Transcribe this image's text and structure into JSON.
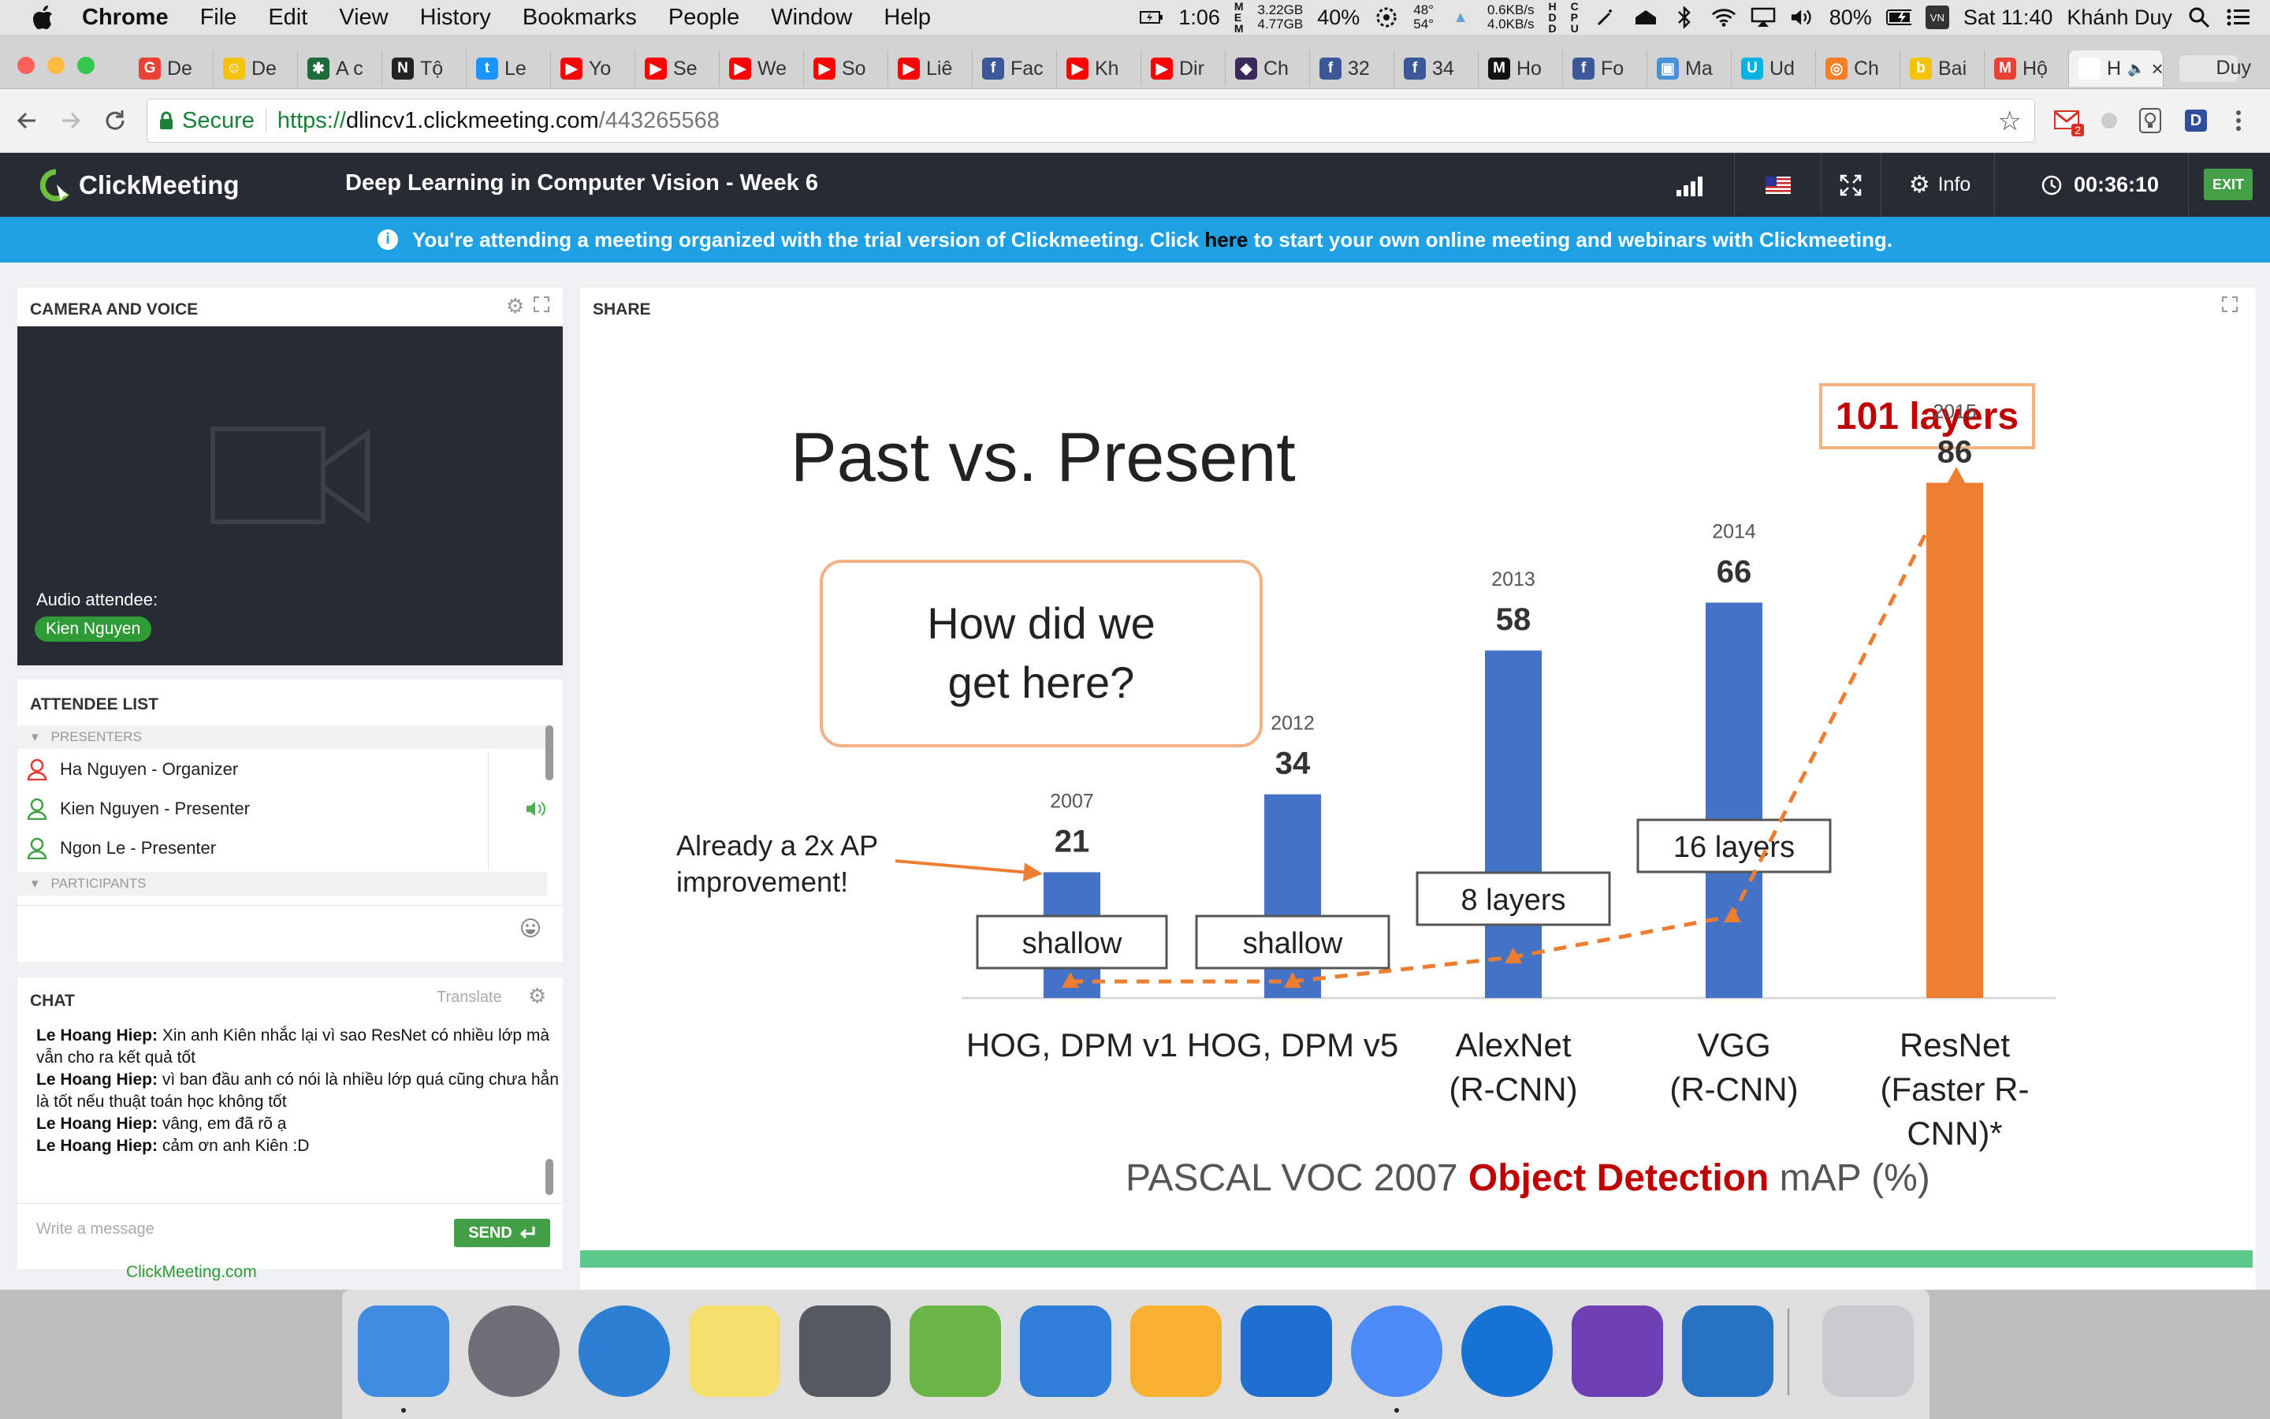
{
  "menubar": {
    "app": "Chrome",
    "menus": [
      "File",
      "Edit",
      "View",
      "History",
      "Bookmarks",
      "People",
      "Window",
      "Help"
    ],
    "battery_time": "1:06",
    "memory": [
      "3.22GB",
      "4.77GB"
    ],
    "cpu": "40%",
    "temps": [
      "48°",
      "54°"
    ],
    "network": [
      "0.6KB/s",
      "4.0KB/s"
    ],
    "battery": "80%",
    "clock": "Sat 11:40",
    "user": "Khánh Duy"
  },
  "browser": {
    "tabs": [
      {
        "label": "De",
        "color": "#ea4335",
        "glyph": "G"
      },
      {
        "label": "De",
        "color": "#f4c20d",
        "glyph": "☺"
      },
      {
        "label": "A c",
        "color": "#1e6b3a",
        "glyph": "✱"
      },
      {
        "label": "Tộ",
        "color": "#222222",
        "glyph": "N"
      },
      {
        "label": "Le",
        "color": "#1a94ff",
        "glyph": "t"
      },
      {
        "label": "Yo",
        "color": "#ff0000",
        "glyph": "▶"
      },
      {
        "label": "Se",
        "color": "#ff0000",
        "glyph": "▶"
      },
      {
        "label": "We",
        "color": "#ff0000",
        "glyph": "▶"
      },
      {
        "label": "So",
        "color": "#ff0000",
        "glyph": "▶"
      },
      {
        "label": "Liê",
        "color": "#ff0000",
        "glyph": "▶"
      },
      {
        "label": "Fac",
        "color": "#3b5998",
        "glyph": "f"
      },
      {
        "label": "Kh",
        "color": "#ff0000",
        "glyph": "▶"
      },
      {
        "label": "Dir",
        "color": "#ff0000",
        "glyph": "▶"
      },
      {
        "label": "Ch",
        "color": "#3a2a5a",
        "glyph": "◆"
      },
      {
        "label": "32",
        "color": "#3b5998",
        "glyph": "f"
      },
      {
        "label": "34",
        "color": "#3b5998",
        "glyph": "f"
      },
      {
        "label": "Ho",
        "color": "#111111",
        "glyph": "M"
      },
      {
        "label": "Fo",
        "color": "#3b5998",
        "glyph": "f"
      },
      {
        "label": "Ma",
        "color": "#4a90d9",
        "glyph": "▣"
      },
      {
        "label": "Ud",
        "color": "#02b3e4",
        "glyph": "U"
      },
      {
        "label": "Ch",
        "color": "#f48024",
        "glyph": "◎"
      },
      {
        "label": "Bai",
        "color": "#f5c400",
        "glyph": "b"
      },
      {
        "label": "Hộ",
        "color": "#ea4335",
        "glyph": "M"
      },
      {
        "label": "H",
        "color": "#ffffff",
        "glyph": ""
      }
    ],
    "profile": "Duy",
    "secure_label": "Secure",
    "url_scheme": "https://",
    "url_host": "dlincv1.clickmeeting.com",
    "url_path": "/443265568",
    "gmail_badge": "2"
  },
  "app": {
    "logo": "ClickMeeting",
    "title": "Deep Learning in Computer Vision - Week 6",
    "info_label": "Info",
    "timer": "00:36:10",
    "exit_label": "EXIT",
    "notice_pre": "You're attending a meeting organized with the trial version of Clickmeeting. Click ",
    "notice_link": "here",
    "notice_post": " to start your own online meeting and webinars with Clickmeeting."
  },
  "camera": {
    "title": "CAMERA AND VOICE",
    "audio_label": "Audio attendee:",
    "audio_name": "Kien Nguyen"
  },
  "attendees": {
    "title": "ATTENDEE LIST",
    "presenters_label": "PRESENTERS",
    "participants_label": "PARTICIPANTS",
    "presenters": [
      {
        "name": "Ha Nguyen  - Organizer",
        "color": "#e53935"
      },
      {
        "name": "Kien Nguyen  - Presenter",
        "color": "#43a047"
      },
      {
        "name": "Ngon Le  - Presenter",
        "color": "#43a047"
      }
    ]
  },
  "chat": {
    "title": "CHAT",
    "translate": "Translate",
    "messages": [
      {
        "author": "Le Hoang Hiep:",
        "text": " Xin anh Kiên nhắc lại vì sao ResNet có nhiều lớp mà vẫn cho ra kết quả tốt"
      },
      {
        "author": "Le Hoang Hiep:",
        "text": " vì ban đầu anh có nói là nhiều lớp quá cũng chưa hẳn là tốt nếu thuật toán học không tốt"
      },
      {
        "author": "Le Hoang Hiep:",
        "text": " vâng, em đã rõ ạ"
      },
      {
        "author": "Le Hoang Hiep:",
        "text": " cảm ơn anh Kiên :D"
      }
    ],
    "placeholder": "Write a message",
    "send": "SEND",
    "powered": "ClickMeeting.com"
  },
  "share": {
    "title": "SHARE",
    "slide": {
      "heading": "Past vs. Present",
      "question": [
        "How did we",
        "get here?"
      ],
      "layers_callout": "101 layers",
      "annotation": [
        "Already a 2x AP",
        "improvement!"
      ],
      "caption_pre": "PASCAL VOC 2007 ",
      "caption_em": "Object Detection",
      "caption_post": " mAP (%)",
      "bars": [
        {
          "year": "2007",
          "value": "21",
          "label": [
            "HOG, DPM v1"
          ],
          "tag": "shallow",
          "color": "#4472c4"
        },
        {
          "year": "2012",
          "value": "34",
          "label": [
            "HOG, DPM v5"
          ],
          "tag": "shallow",
          "color": "#4472c4"
        },
        {
          "year": "2013",
          "value": "58",
          "label": [
            "AlexNet",
            "(R-CNN)"
          ],
          "tag": "8 layers",
          "color": "#4472c4"
        },
        {
          "year": "2014",
          "value": "66",
          "label": [
            "VGG",
            "(R-CNN)"
          ],
          "tag": "16 layers",
          "color": "#4472c4"
        },
        {
          "year": "2015",
          "value": "86",
          "label": [
            "ResNet",
            "(Faster R-",
            "CNN)*"
          ],
          "tag": "",
          "color": "#ed7d31"
        }
      ]
    }
  },
  "dock": {
    "apps": [
      {
        "name": "finder",
        "color": "#3f8be0"
      },
      {
        "name": "launchpad",
        "color": "#6d7177"
      },
      {
        "name": "itunes",
        "color": "#2d7fd3"
      },
      {
        "name": "notes",
        "color": "#f5e06e"
      },
      {
        "name": "system-preferences",
        "color": "#555a61"
      },
      {
        "name": "android-studio",
        "color": "#6bb548"
      },
      {
        "name": "xcode",
        "color": "#2f7fd8"
      },
      {
        "name": "sketch",
        "color": "#f7b12e"
      },
      {
        "name": "filezilla",
        "color": "#1f6fd1"
      },
      {
        "name": "chrome",
        "color": "#4c8bf5"
      },
      {
        "name": "sourcetree",
        "color": "#1673d4"
      },
      {
        "name": "visual-studio",
        "color": "#6c3fb3"
      },
      {
        "name": "vscode",
        "color": "#2673c3"
      },
      {
        "name": "trash",
        "color": "#c8ccd0"
      }
    ]
  }
}
